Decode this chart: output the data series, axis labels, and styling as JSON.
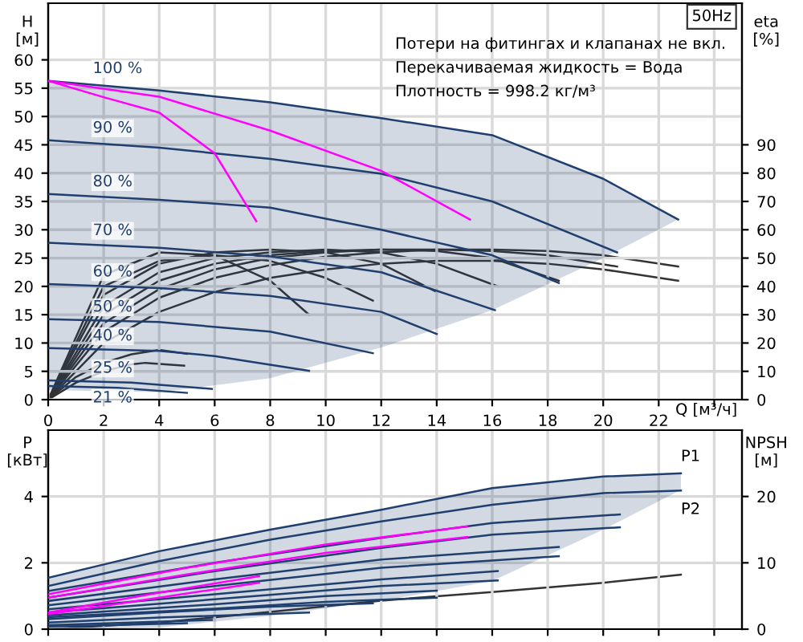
{
  "chart_data": [
    {
      "type": "line",
      "xlabel": "Q [м³/ч]",
      "ylabel": "H\n[м]",
      "y2label": "eta\n[%]",
      "xlim": [
        0,
        25
      ],
      "ylim": [
        0,
        70
      ],
      "y2lim": [
        0,
        140
      ],
      "xticks": [
        0,
        2,
        4,
        6,
        8,
        10,
        12,
        14,
        16,
        18,
        20,
        22,
        {
          "value": 24,
          "label": null
        }
      ],
      "yticks": [
        0,
        5,
        10,
        15,
        20,
        25,
        30,
        35,
        40,
        45,
        50,
        55,
        60
      ],
      "y2ticks": [
        0,
        10,
        20,
        30,
        40,
        50,
        60,
        70,
        80,
        90
      ],
      "grid": true,
      "legend": false,
      "tick_labels": "xy",
      "annotations": [
        "50Hz",
        "Потери на фитингах и клапанах не вкл.",
        "Перекачиваемая жидкость = Вода",
        "Плотность = 998.2 кг/м³"
      ],
      "series": [
        {
          "name": "100 %",
          "color": "#1f3f6e",
          "x": [
            0,
            4,
            8,
            12,
            16,
            20,
            22.7
          ],
          "values": [
            56.3,
            54.6,
            52.5,
            49.7,
            46.7,
            39,
            31.8
          ],
          "lower": [
            1.7,
            1.3,
            3.8,
            9.2,
            15.8,
            25,
            31.8
          ],
          "upper": [
            56.3,
            54.6,
            52.5,
            49.7,
            46.7,
            39,
            31.8
          ]
        },
        {
          "name": "90 %",
          "color": "#1f3f6e",
          "x": [
            0,
            4,
            8,
            12,
            16,
            20.5
          ],
          "values": [
            45.8,
            44.5,
            42.5,
            39.9,
            35,
            26
          ]
        },
        {
          "name": "80 %",
          "color": "#1f3f6e",
          "x": [
            0,
            4,
            8,
            12,
            16,
            18.4
          ],
          "values": [
            36.3,
            35.3,
            33.9,
            30,
            25.5,
            20.6
          ]
        },
        {
          "name": "70 %",
          "color": "#1f3f6e",
          "x": [
            0,
            4,
            8,
            12,
            16.1
          ],
          "values": [
            27.7,
            26.8,
            25.3,
            22.5,
            15.8
          ]
        },
        {
          "name": "60 %",
          "color": "#1f3f6e",
          "x": [
            0,
            4,
            8,
            12,
            14
          ],
          "values": [
            20.4,
            19.7,
            18.3,
            15.5,
            11.6
          ]
        },
        {
          "name": "50 %",
          "color": "#1f3f6e",
          "x": [
            0,
            4,
            8,
            11.7
          ],
          "values": [
            14.2,
            13.7,
            12,
            8.2
          ]
        },
        {
          "name": "40 %",
          "color": "#1f3f6e",
          "x": [
            0,
            4,
            6,
            9.4
          ],
          "values": [
            9.1,
            8.6,
            7.7,
            5.1
          ]
        },
        {
          "name": "25 %",
          "color": "#1f3f6e",
          "x": [
            0,
            3,
            5.9
          ],
          "values": [
            3.4,
            3.0,
            1.9
          ]
        },
        {
          "name": "21 %",
          "color": "#1f3f6e",
          "x": [
            0,
            2.5,
            5
          ],
          "values": [
            2.4,
            2.1,
            1.2
          ]
        },
        {
          "color": "#ff00ff",
          "x": [
            0,
            2,
            4,
            6,
            7.5
          ],
          "values": [
            56.3,
            53.4,
            50.7,
            43.5,
            31.5
          ]
        },
        {
          "color": "#ff00ff",
          "x": [
            0,
            4,
            8,
            12,
            15.2
          ],
          "values": [
            56.3,
            53.5,
            47.5,
            40.4,
            31.8
          ]
        },
        {
          "color": "#333333",
          "axis": "y2",
          "x": [
            0,
            2,
            4,
            6,
            8,
            10,
            12,
            14,
            16,
            18,
            20,
            22.7
          ],
          "values": [
            0,
            24,
            36,
            43,
            47.5,
            50.5,
            52,
            53,
            53,
            52.5,
            51,
            47
          ]
        },
        {
          "color": "#333333",
          "axis": "y2",
          "x": [
            0,
            2,
            4,
            6,
            8,
            10,
            12,
            14,
            16,
            18,
            20,
            22.7
          ],
          "values": [
            0,
            20,
            31,
            38,
            43,
            46,
            48,
            49,
            49,
            48,
            46,
            42
          ]
        },
        {
          "color": "#333333",
          "axis": "y2",
          "x": [
            0,
            2,
            4,
            6,
            8,
            10,
            12,
            14,
            16,
            18,
            20.5
          ],
          "values": [
            0,
            27,
            39,
            46,
            50,
            52,
            53,
            53,
            52.5,
            51,
            47
          ]
        },
        {
          "color": "#333333",
          "axis": "y2",
          "x": [
            0,
            2,
            4,
            6,
            8,
            10,
            12,
            14,
            16,
            18.4
          ],
          "values": [
            0,
            30,
            42,
            48,
            51,
            52.5,
            53,
            52.5,
            50,
            42
          ]
        },
        {
          "color": "#333333",
          "axis": "y2",
          "x": [
            0,
            2,
            4,
            6,
            8,
            10,
            12,
            14,
            16.2
          ],
          "values": [
            0,
            33,
            45,
            50,
            52,
            53,
            52,
            48,
            40
          ]
        },
        {
          "color": "#333333",
          "axis": "y2",
          "x": [
            0,
            2,
            4,
            6,
            8,
            10,
            12,
            14
          ],
          "values": [
            0,
            37,
            48,
            52,
            53,
            52,
            48,
            38
          ]
        },
        {
          "color": "#333333",
          "axis": "y2",
          "x": [
            0,
            2,
            4,
            6,
            8,
            10,
            11.7
          ],
          "values": [
            0,
            40,
            49,
            51,
            49,
            43,
            35
          ]
        },
        {
          "color": "#333333",
          "axis": "y2",
          "x": [
            0,
            2,
            4,
            6,
            8,
            9.4
          ],
          "values": [
            0,
            44,
            52,
            51,
            42,
            30
          ]
        },
        {
          "color": "#333333",
          "axis": "y2",
          "x": [
            0,
            1,
            2,
            3,
            4,
            5
          ],
          "values": [
            0,
            8,
            13,
            16,
            17.6,
            16.2
          ]
        },
        {
          "color": "#333333",
          "axis": "y2",
          "x": [
            0,
            1,
            2,
            3,
            3.5,
            4.9
          ],
          "values": [
            0,
            6,
            10,
            12.5,
            13,
            12
          ]
        }
      ]
    },
    {
      "type": "line",
      "ylabel": "P\n[кВт]",
      "y2label": "NPSH\n[м]",
      "xlim": [
        0,
        25
      ],
      "ylim": [
        0,
        6
      ],
      "y2lim": [
        0,
        30
      ],
      "xticks": [
        0,
        2,
        4,
        6,
        8,
        10,
        12,
        14,
        16,
        18,
        20,
        22,
        {
          "value": 24,
          "label": null
        }
      ],
      "yticks": [
        0,
        2,
        4
      ],
      "y2ticks": [
        0,
        10,
        20
      ],
      "grid": true,
      "legend": false,
      "tick_labels": "y",
      "annotations": [
        {
          "text": "P1",
          "x": 22.8,
          "y": 4.7
        },
        {
          "text": "P2",
          "x": 22.8,
          "y": 4.18
        }
      ],
      "series": [
        {
          "color": "#1f3f6e",
          "x": [
            0,
            4,
            8,
            12,
            16,
            20,
            22.8
          ],
          "values": [
            1.55,
            2.35,
            3.0,
            3.6,
            4.25,
            4.6,
            4.7
          ],
          "lower": [
            0,
            0.05,
            0.4,
            0.85,
            1.45,
            3.0,
            4.2
          ],
          "upper": [
            1.55,
            2.35,
            3.0,
            3.6,
            4.25,
            4.6,
            4.7
          ]
        },
        {
          "color": "#1f3f6e",
          "x": [
            0,
            4,
            8,
            12,
            16,
            20,
            22.8
          ],
          "values": [
            1.3,
            2.05,
            2.7,
            3.25,
            3.75,
            4.1,
            4.18
          ]
        },
        {
          "color": "#1f3f6e",
          "x": [
            0,
            6,
            12,
            16,
            20.6
          ],
          "values": [
            1.15,
            2.0,
            2.75,
            3.2,
            3.46
          ]
        },
        {
          "color": "#1f3f6e",
          "x": [
            0,
            6,
            12,
            16,
            20.6
          ],
          "values": [
            0.95,
            1.75,
            2.45,
            2.85,
            3.07
          ]
        },
        {
          "color": "#1f3f6e",
          "x": [
            0,
            6,
            12,
            18.4
          ],
          "values": [
            0.85,
            1.5,
            2.1,
            2.48
          ]
        },
        {
          "color": "#1f3f6e",
          "x": [
            0,
            6,
            12,
            18.4
          ],
          "values": [
            0.72,
            1.3,
            1.85,
            2.2
          ]
        },
        {
          "color": "#1f3f6e",
          "x": [
            0,
            6,
            12,
            16.2
          ],
          "values": [
            0.6,
            1.05,
            1.5,
            1.75
          ]
        },
        {
          "color": "#1f3f6e",
          "x": [
            0,
            6,
            12,
            16.2
          ],
          "values": [
            0.5,
            0.9,
            1.3,
            1.47
          ]
        },
        {
          "color": "#1f3f6e",
          "x": [
            0,
            6,
            10,
            14
          ],
          "values": [
            0.42,
            0.75,
            1.0,
            1.16
          ]
        },
        {
          "color": "#1f3f6e",
          "x": [
            0,
            6,
            10,
            14
          ],
          "values": [
            0.36,
            0.62,
            0.82,
            0.95
          ]
        },
        {
          "color": "#1f3f6e",
          "x": [
            0,
            4,
            8,
            11.7
          ],
          "values": [
            0.3,
            0.5,
            0.68,
            0.78
          ]
        },
        {
          "color": "#1f3f6e",
          "x": [
            0,
            4,
            9.4
          ],
          "values": [
            0.2,
            0.35,
            0.5
          ]
        },
        {
          "color": "#1f3f6e",
          "x": [
            0,
            3,
            5.9
          ],
          "values": [
            0.12,
            0.2,
            0.28
          ]
        },
        {
          "color": "#1f3f6e",
          "x": [
            0,
            2.5,
            5
          ],
          "values": [
            0.08,
            0.13,
            0.18
          ]
        },
        {
          "color": "#ff00ff",
          "x": [
            0,
            5,
            10,
            15.1
          ],
          "values": [
            1.05,
            1.85,
            2.55,
            3.1
          ]
        },
        {
          "color": "#ff00ff",
          "x": [
            0,
            5,
            10,
            15.1
          ],
          "values": [
            0.95,
            1.65,
            2.3,
            2.78
          ]
        },
        {
          "color": "#ff00ff",
          "x": [
            0,
            4,
            7.6
          ],
          "values": [
            0.5,
            1.1,
            1.6
          ]
        },
        {
          "color": "#ff00ff",
          "x": [
            0,
            4,
            7.6
          ],
          "values": [
            0.45,
            0.95,
            1.4
          ]
        },
        {
          "color": "#333333",
          "axis": "y2",
          "x": [
            0,
            4,
            8,
            12,
            16,
            20,
            22.8
          ],
          "values": [
            0,
            1.0,
            2.6,
            4.3,
            5.6,
            7.0,
            8.2
          ]
        }
      ]
    }
  ]
}
